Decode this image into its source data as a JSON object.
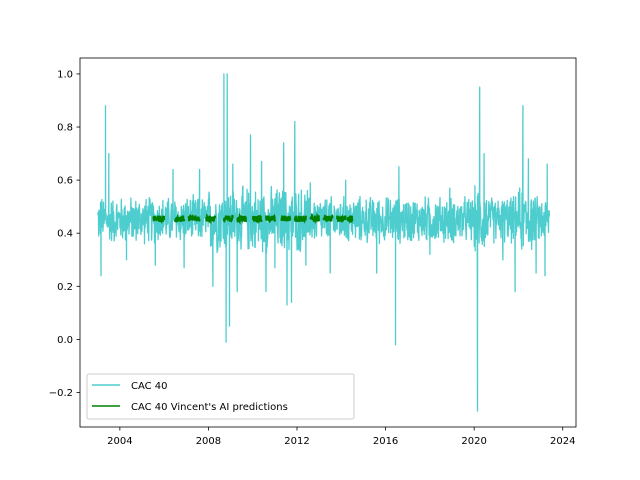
{
  "chart_data": {
    "type": "line",
    "title": "",
    "xlabel": "",
    "ylabel": "",
    "xlim": [
      2002.2,
      2024.6
    ],
    "ylim": [
      -0.33,
      1.06
    ],
    "x_ticks": [
      2004,
      2008,
      2012,
      2016,
      2020,
      2024
    ],
    "y_ticks": [
      -0.2,
      0.0,
      0.2,
      0.4,
      0.6,
      0.8,
      1.0
    ],
    "grid": false,
    "legend_position": "lower-left",
    "series": [
      {
        "name": "CAC 40",
        "color": "#4ecdcf",
        "x_range": [
          2003.0,
          2023.4
        ],
        "baseline": 0.45,
        "noise_amplitude": 0.09,
        "spikes": [
          {
            "x": 2003.15,
            "y": 0.24
          },
          {
            "x": 2003.35,
            "y": 0.88
          },
          {
            "x": 2003.5,
            "y": 0.7
          },
          {
            "x": 2004.3,
            "y": 0.3
          },
          {
            "x": 2005.6,
            "y": 0.28
          },
          {
            "x": 2006.4,
            "y": 0.64
          },
          {
            "x": 2006.9,
            "y": 0.27
          },
          {
            "x": 2007.6,
            "y": 0.64
          },
          {
            "x": 2008.2,
            "y": 0.2
          },
          {
            "x": 2008.7,
            "y": 1.0
          },
          {
            "x": 2008.85,
            "y": 1.0
          },
          {
            "x": 2008.8,
            "y": -0.01
          },
          {
            "x": 2008.95,
            "y": 0.05
          },
          {
            "x": 2009.1,
            "y": 0.66
          },
          {
            "x": 2009.3,
            "y": 0.18
          },
          {
            "x": 2009.9,
            "y": 0.77
          },
          {
            "x": 2010.4,
            "y": 0.67
          },
          {
            "x": 2010.6,
            "y": 0.18
          },
          {
            "x": 2011.0,
            "y": 0.27
          },
          {
            "x": 2011.4,
            "y": 0.74
          },
          {
            "x": 2011.55,
            "y": 0.13
          },
          {
            "x": 2011.75,
            "y": 0.14
          },
          {
            "x": 2011.9,
            "y": 0.82
          },
          {
            "x": 2012.4,
            "y": 0.28
          },
          {
            "x": 2012.6,
            "y": 0.59
          },
          {
            "x": 2013.5,
            "y": 0.25
          },
          {
            "x": 2014.2,
            "y": 0.6
          },
          {
            "x": 2015.6,
            "y": 0.25
          },
          {
            "x": 2016.45,
            "y": -0.02
          },
          {
            "x": 2016.6,
            "y": 0.65
          },
          {
            "x": 2018.0,
            "y": 0.32
          },
          {
            "x": 2018.9,
            "y": 0.57
          },
          {
            "x": 2020.15,
            "y": -0.27
          },
          {
            "x": 2020.25,
            "y": 0.95
          },
          {
            "x": 2020.45,
            "y": 0.7
          },
          {
            "x": 2021.3,
            "y": 0.3
          },
          {
            "x": 2021.85,
            "y": 0.18
          },
          {
            "x": 2022.2,
            "y": 0.88
          },
          {
            "x": 2022.45,
            "y": 0.68
          },
          {
            "x": 2022.8,
            "y": 0.25
          },
          {
            "x": 2023.2,
            "y": 0.24
          },
          {
            "x": 2023.3,
            "y": 0.66
          }
        ]
      },
      {
        "name": "CAC 40 Vincent's AI predictions",
        "color": "#008000",
        "baseline": 0.455,
        "noise_amplitude": 0.012,
        "segments": [
          [
            2005.5,
            2006.0
          ],
          [
            2006.5,
            2006.9
          ],
          [
            2007.1,
            2007.6
          ],
          [
            2007.9,
            2008.3
          ],
          [
            2008.7,
            2009.1
          ],
          [
            2009.3,
            2009.7
          ],
          [
            2010.0,
            2010.4
          ],
          [
            2010.6,
            2011.0
          ],
          [
            2011.3,
            2011.7
          ],
          [
            2011.9,
            2012.4
          ],
          [
            2012.6,
            2013.0
          ],
          [
            2013.2,
            2013.6
          ],
          [
            2013.8,
            2014.2
          ],
          [
            2014.3,
            2014.5
          ]
        ]
      }
    ]
  }
}
